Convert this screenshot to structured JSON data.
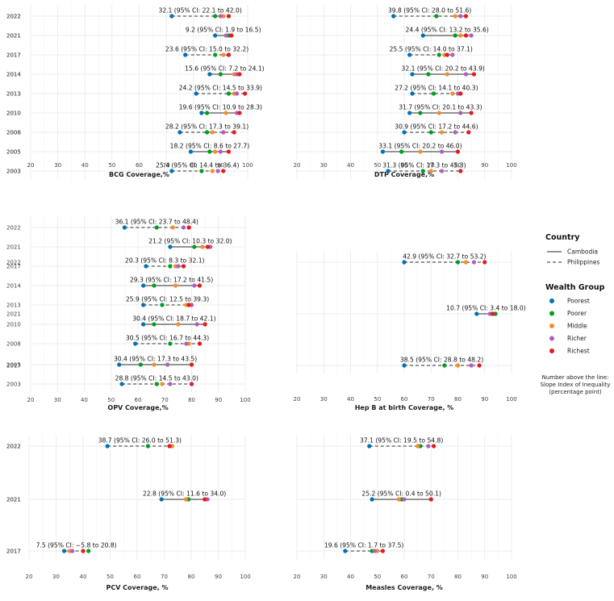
{
  "legend": {
    "country_title": "Country",
    "countries": [
      {
        "name": "Cambodia",
        "style": "solid"
      },
      {
        "name": "Philippines",
        "style": "dashed"
      }
    ],
    "wealth_title": "Wealth Group",
    "groups": [
      {
        "name": "Poorest",
        "color": "#0072B2"
      },
      {
        "name": "Poorer",
        "color": "#009E20"
      },
      {
        "name": "Middle",
        "color": "#F28E2B"
      },
      {
        "name": "Richer",
        "color": "#B05FC0"
      },
      {
        "name": "Richest",
        "color": "#E41A1C"
      }
    ],
    "note_lines": [
      "Number above the line:",
      "Slope Index of Inequality",
      "(percentage point)"
    ]
  },
  "chart_data": [
    {
      "type": "dumbbell",
      "title": "BCG Coverage,%",
      "xlim": [
        20,
        100
      ],
      "xticks": [
        20,
        30,
        40,
        50,
        60,
        70,
        80,
        90,
        100
      ],
      "rows": [
        {
          "year": "2022",
          "country": "Philippines",
          "sii": "32.1 (95% CI: 22.1 to 42.0)",
          "values": [
            72,
            88,
            91,
            90,
            93
          ]
        },
        {
          "year": "2021",
          "country": "Cambodia",
          "sii": "9.2 (95% CI: 1.9 to 16.5)",
          "values": [
            88,
            93,
            94,
            92,
            94
          ]
        },
        {
          "year": "2017",
          "country": "Philippines",
          "sii": "23.6 (95% CI: 15.0 to 32.2)",
          "values": [
            77,
            88,
            91,
            93,
            93
          ]
        },
        {
          "year": "2014",
          "country": "Cambodia",
          "sii": "15.6 (95% CI: 7.2 to 24.1)",
          "values": [
            86,
            90,
            95,
            96,
            97
          ]
        },
        {
          "year": "2013",
          "country": "Philippines",
          "sii": "24.2 (95% CI: 14.5 to 33.9)",
          "values": [
            81,
            93,
            95,
            96,
            99
          ]
        },
        {
          "year": "2010",
          "country": "Cambodia",
          "sii": "19.6 (95% CI: 10.9 to 28.3)",
          "values": [
            83,
            85,
            92,
            96,
            97
          ]
        },
        {
          "year": "2008",
          "country": "Philippines",
          "sii": "28.2 (95% CI: 17.3 to 39.1)",
          "values": [
            75,
            85,
            87,
            91,
            95
          ]
        },
        {
          "year": "2005",
          "country": "Cambodia",
          "sii": "18.2 (95% CI: 8.6 to 27.7)",
          "values": [
            79,
            86,
            88,
            90,
            93
          ]
        },
        {
          "year": "2003",
          "country": "Philippines",
          "sii": "25.4 (95% CI: 14.4 to 36.4)",
          "values": [
            72,
            83,
            87,
            89,
            91
          ]
        }
      ]
    },
    {
      "type": "dumbbell",
      "title": "DTP Coverage,%",
      "xlim": [
        20,
        100
      ],
      "xticks": [
        20,
        30,
        40,
        50,
        60,
        70,
        80,
        90,
        100
      ],
      "rows": [
        {
          "year": "2022",
          "country": "Philippines",
          "sii": "39.8 (95% CI: 28.0 to 51.6)",
          "values": [
            56,
            72,
            79,
            81,
            83
          ]
        },
        {
          "year": "2021",
          "country": "Cambodia",
          "sii": "24.4 (95% CI: 13.2 to 35.6)",
          "values": [
            67,
            79,
            81,
            85,
            83
          ]
        },
        {
          "year": "2017",
          "country": "Philippines",
          "sii": "25.5 (95% CI: 14.0 to 37.1)",
          "values": [
            62,
            73,
            75,
            78,
            76
          ]
        },
        {
          "year": "2014",
          "country": "Cambodia",
          "sii": "32.1 (95% CI: 20.2 to 43.9)",
          "values": [
            63,
            69,
            76,
            83,
            86
          ]
        },
        {
          "year": "2013",
          "country": "Philippines",
          "sii": "27.2 (95% CI: 14.1 to 40.3)",
          "values": [
            63,
            71,
            78,
            80,
            81
          ]
        },
        {
          "year": "2010",
          "country": "Cambodia",
          "sii": "31.7 (95% CI: 20.1 to 43.3)",
          "values": [
            62,
            66,
            73,
            81,
            85
          ]
        },
        {
          "year": "2008",
          "country": "Philippines",
          "sii": "30.9 (95% CI: 17.2 to 44.6)",
          "values": [
            60,
            70,
            74,
            79,
            84
          ]
        },
        {
          "year": "2005",
          "country": "Cambodia",
          "sii": "33.1 (95% CI: 20.2 to 46.0)",
          "values": [
            52,
            59,
            66,
            74,
            80
          ]
        },
        {
          "year": "2003",
          "country": "Philippines",
          "sii": "31.3 (95% CI: 17.3 to 45.3)",
          "values": [
            54,
            67,
            70,
            74,
            81
          ]
        }
      ]
    },
    {
      "type": "dumbbell",
      "title": "OPV Coverage,%",
      "xlim": [
        20,
        100
      ],
      "xticks": [
        20,
        30,
        40,
        50,
        60,
        70,
        80,
        90,
        100
      ],
      "rows": [
        {
          "year": "2022",
          "country": "Philippines",
          "sii": "36.1 (95% CI: 23.7 to 48.4)",
          "values": [
            55,
            67,
            73,
            77,
            79
          ]
        },
        {
          "year": "2021",
          "country": "Cambodia",
          "sii": "21.2 (95% CI: 10.3 to 32.0)",
          "values": [
            72,
            81,
            84,
            87,
            86
          ]
        },
        {
          "year": "2017",
          "country": "Philippines",
          "sii": "20.3 (95% CI: 8.3 to 32.1)",
          "values": [
            63,
            72,
            74,
            75,
            77
          ]
        },
        {
          "year": "2014",
          "country": "Cambodia",
          "sii": "29.3 (95% CI: 17.2 to 41.5)",
          "values": [
            62,
            66,
            74,
            81,
            83
          ]
        },
        {
          "year": "2013",
          "country": "Philippines",
          "sii": "25.9 (95% CI: 12.5 to 39.3)",
          "values": [
            62,
            69,
            78,
            80,
            79
          ]
        },
        {
          "year": "2010",
          "country": "Cambodia",
          "sii": "30.4 (95% CI: 18.7 to 42.1)",
          "values": [
            62,
            66,
            75,
            82,
            85
          ]
        },
        {
          "year": "2008",
          "country": "Philippines",
          "sii": "30.5 (95% CI: 16.7 to 44.3)",
          "values": [
            59,
            72,
            79,
            78,
            83
          ]
        },
        {
          "year": "2005",
          "country": "Cambodia",
          "sii": "30.4 (95% CI: 17.3 to 43.5)",
          "values": [
            53,
            61,
            66,
            71,
            80
          ]
        },
        {
          "year": "2003",
          "country": "Philippines",
          "sii": "28.8 (95% CI: 14.5 to 43.0)",
          "values": [
            54,
            67,
            69,
            72,
            80
          ]
        }
      ]
    },
    {
      "type": "dumbbell",
      "title": "Hep B at birth Coverage, %",
      "xlim": [
        20,
        100
      ],
      "xticks": [
        20,
        30,
        40,
        50,
        60,
        70,
        80,
        90,
        100
      ],
      "rows": [
        {
          "year": "2022",
          "country": "Philippines",
          "sii": "42.9 (95% CI: 32.7 to 53.2)",
          "values": [
            60,
            80,
            83,
            86,
            90
          ]
        },
        {
          "year": "2021",
          "country": "Cambodia",
          "sii": "10.7 (95% CI: 3.4 to 18.0)",
          "values": [
            87,
            94,
            93,
            92,
            93
          ]
        },
        {
          "year": "2017",
          "country": "Philippines",
          "sii": "38.5 (95% CI: 28.8 to 48.2)",
          "values": [
            60,
            75,
            80,
            85,
            88
          ]
        }
      ]
    },
    {
      "type": "dumbbell",
      "title": "PCV Coverage, %",
      "xlim": [
        20,
        100
      ],
      "xticks": [
        20,
        30,
        40,
        50,
        60,
        70,
        80,
        90,
        100
      ],
      "rows": [
        {
          "year": "2022",
          "country": "Philippines",
          "sii": "38.7 (95% CI: 26.0 to 51.3)",
          "values": [
            49,
            64,
            73,
            72,
            72
          ]
        },
        {
          "year": "2021",
          "country": "Cambodia",
          "sii": "22.8 (95% CI: 11.6 to 34.0)",
          "values": [
            69,
            79,
            78,
            86,
            85
          ]
        },
        {
          "year": "2017",
          "country": "Philippines",
          "sii": "7.5 (95% CI: −5.8 to 20.8)",
          "values": [
            33,
            42,
            35,
            36,
            40
          ]
        }
      ]
    },
    {
      "type": "dumbbell",
      "title": "Measles Coverage, %",
      "xlim": [
        20,
        100
      ],
      "xticks": [
        20,
        30,
        40,
        50,
        60,
        70,
        80,
        90,
        100
      ],
      "rows": [
        {
          "year": "2022",
          "country": "Philippines",
          "sii": "37.1 (95% CI: 19.5 to 54.8)",
          "values": [
            47,
            66,
            65,
            69,
            71
          ]
        },
        {
          "year": "2021",
          "country": "Cambodia",
          "sii": "25.2 (95% CI: 0.4 to 50.1)",
          "values": [
            48,
            59,
            58,
            60,
            70
          ]
        },
        {
          "year": "2017",
          "country": "Philippines",
          "sii": "19.6 (95% CI: 1.7 to 37.5)",
          "values": [
            38,
            48,
            50,
            49,
            52
          ]
        }
      ]
    }
  ]
}
